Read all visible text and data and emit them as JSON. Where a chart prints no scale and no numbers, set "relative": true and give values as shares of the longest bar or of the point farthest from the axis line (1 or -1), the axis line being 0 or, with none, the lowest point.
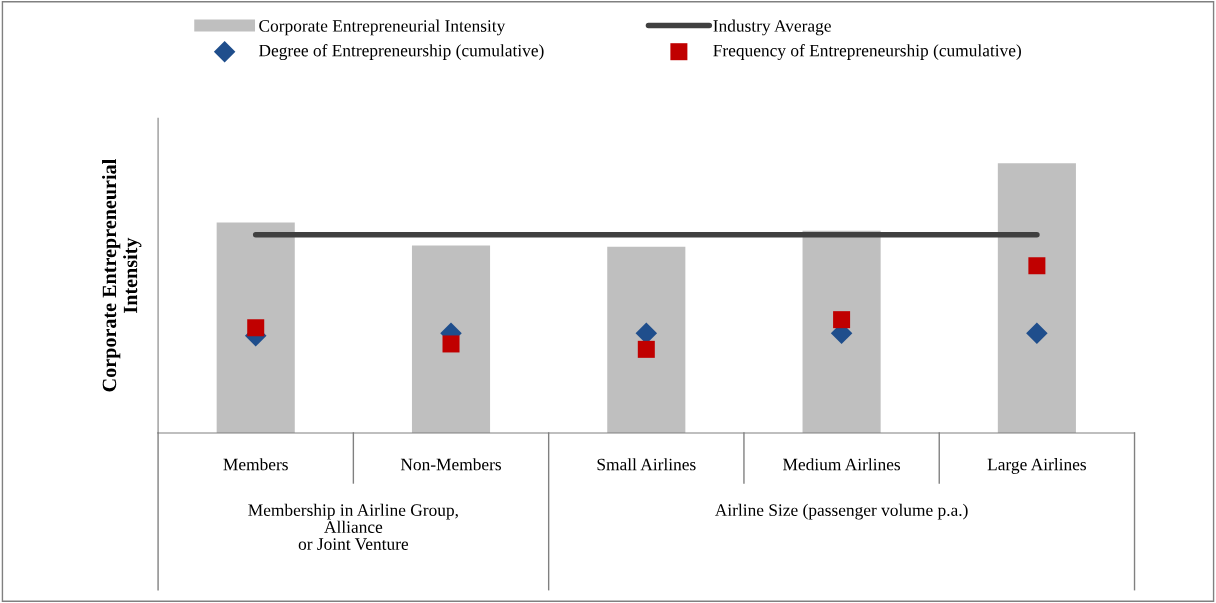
{
  "chart_data": {
    "type": "bar",
    "relative": true,
    "ylabel": "Corporate Entrepreneurial\nIntensity",
    "categories": [
      "Members",
      "Non-Members",
      "Small Airlines",
      "Medium Airlines",
      "Large Airlines"
    ],
    "series": [
      {
        "name": "Corporate Entrepreneurial Intensity",
        "color": "#bfbfbf",
        "values": [
          0.78,
          0.695,
          0.69,
          0.75,
          1
        ]
      },
      {
        "name": "Industry Average",
        "type": "line",
        "color": "#404040",
        "marker": "none",
        "values": [
          0.735,
          0.735,
          0.735,
          0.735,
          0.735
        ]
      },
      {
        "name": "Degree of Entrepreneurship (cumulative)",
        "type": "scatter",
        "marker": "diamond",
        "color": "#1f4e8c",
        "values": [
          0.36,
          0.37,
          0.37,
          0.37,
          0.37
        ]
      },
      {
        "name": "Frequency of Entrepreneurship (cumulative)",
        "type": "scatter",
        "marker": "square",
        "color": "#c00000",
        "values": [
          0.39,
          0.33,
          0.31,
          0.42,
          0.62
        ]
      }
    ],
    "annotations": [
      "Membership in Airline Group,\nAlliance\nor Joint Venture",
      "Airline Size (passenger volume p.a.)"
    ],
    "legend": "top",
    "grid": false
  }
}
